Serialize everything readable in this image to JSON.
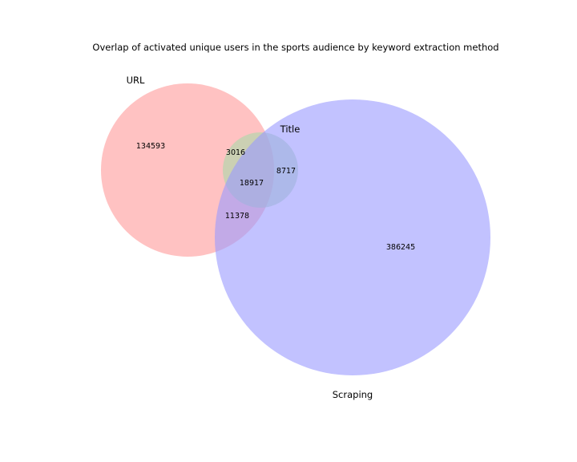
{
  "chart_data": {
    "type": "venn",
    "title": "Overlap of activated unique users in the sports audience by keyword extraction method",
    "sets": [
      {
        "name": "URL",
        "color": "#ff9999"
      },
      {
        "name": "Title",
        "color": "#a8d8a8"
      },
      {
        "name": "Scraping",
        "color": "#9999ff"
      }
    ],
    "regions": [
      {
        "sets": [
          "URL"
        ],
        "value": 134593
      },
      {
        "sets": [
          "Title"
        ],
        "value": 0
      },
      {
        "sets": [
          "Scraping"
        ],
        "value": 386245
      },
      {
        "sets": [
          "URL",
          "Title"
        ],
        "value": 3016
      },
      {
        "sets": [
          "URL",
          "Scraping"
        ],
        "value": 11378
      },
      {
        "sets": [
          "Title",
          "Scraping"
        ],
        "value": 8717
      },
      {
        "sets": [
          "URL",
          "Title",
          "Scraping"
        ],
        "value": 18917
      }
    ]
  }
}
